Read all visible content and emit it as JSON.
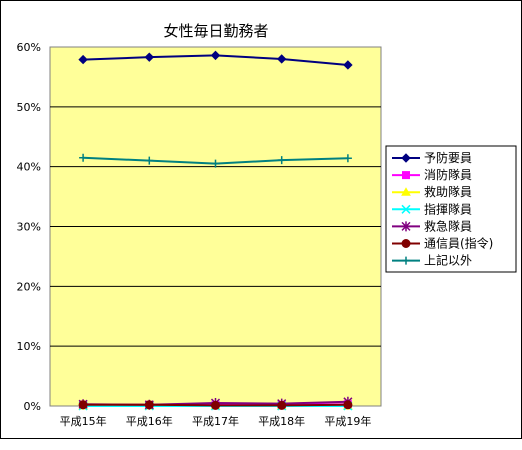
{
  "chart_data": {
    "type": "line",
    "title": "女性毎日勤務者",
    "categories": [
      "平成15年",
      "平成16年",
      "平成17年",
      "平成18年",
      "平成19年"
    ],
    "y_tick_labels": [
      "0%",
      "10%",
      "20%",
      "30%",
      "40%",
      "50%",
      "60%"
    ],
    "ylim": [
      0,
      60
    ],
    "unit": "%",
    "grid": true,
    "legend_position": "right",
    "plot_background": "#ffff99",
    "series": [
      {
        "name": "予防要員",
        "values": [
          57.9,
          58.3,
          58.6,
          58.0,
          57.0
        ],
        "color": "#000080",
        "marker": "diamond"
      },
      {
        "name": "消防隊員",
        "values": [
          0.2,
          0.2,
          0.2,
          0.2,
          0.3
        ],
        "color": "#ff00ff",
        "marker": "square"
      },
      {
        "name": "救助隊員",
        "values": [
          0.0,
          0.0,
          0.0,
          0.0,
          0.0
        ],
        "color": "#ffff00",
        "marker": "triangle"
      },
      {
        "name": "指揮隊員",
        "values": [
          0.0,
          0.0,
          0.0,
          0.0,
          0.0
        ],
        "color": "#00ffff",
        "marker": "x"
      },
      {
        "name": "救急隊員",
        "values": [
          0.3,
          0.2,
          0.5,
          0.4,
          0.7
        ],
        "color": "#800080",
        "marker": "star"
      },
      {
        "name": "通信員(指令)",
        "values": [
          0.2,
          0.2,
          0.1,
          0.1,
          0.2
        ],
        "color": "#800000",
        "marker": "circle"
      },
      {
        "name": "上記以外",
        "values": [
          41.5,
          41.0,
          40.5,
          41.1,
          41.4
        ],
        "color": "#008080",
        "marker": "plus"
      }
    ]
  }
}
